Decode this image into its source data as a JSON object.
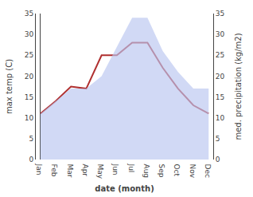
{
  "chart_data": {
    "type": "line",
    "categories": [
      "Jan",
      "Feb",
      "Mar",
      "Apr",
      "May",
      "Jun",
      "Jul",
      "Aug",
      "Sep",
      "Oct",
      "Nov",
      "Dec"
    ],
    "series": [
      {
        "type": "area",
        "axis": "y2",
        "color": "#b8c4f0",
        "values": [
          11,
          14,
          17,
          17,
          20,
          27,
          34,
          34,
          26,
          21,
          17,
          17
        ]
      },
      {
        "type": "line",
        "color": "#b03030",
        "values": [
          11,
          14,
          17.5,
          17,
          25,
          25,
          28,
          28,
          22,
          17,
          13,
          11
        ]
      }
    ],
    "xlabel": "date (month)",
    "ylabel": "max temp (C)",
    "y2label": "med. precipitation (kg/m2)",
    "ylim": [
      0,
      35
    ],
    "yticks": [
      0,
      5,
      10,
      15,
      20,
      25,
      30,
      35
    ],
    "y2lim": [
      0,
      35
    ],
    "y2ticks": [
      0,
      5,
      10,
      15,
      20,
      25,
      30,
      35
    ],
    "grid": false
  }
}
